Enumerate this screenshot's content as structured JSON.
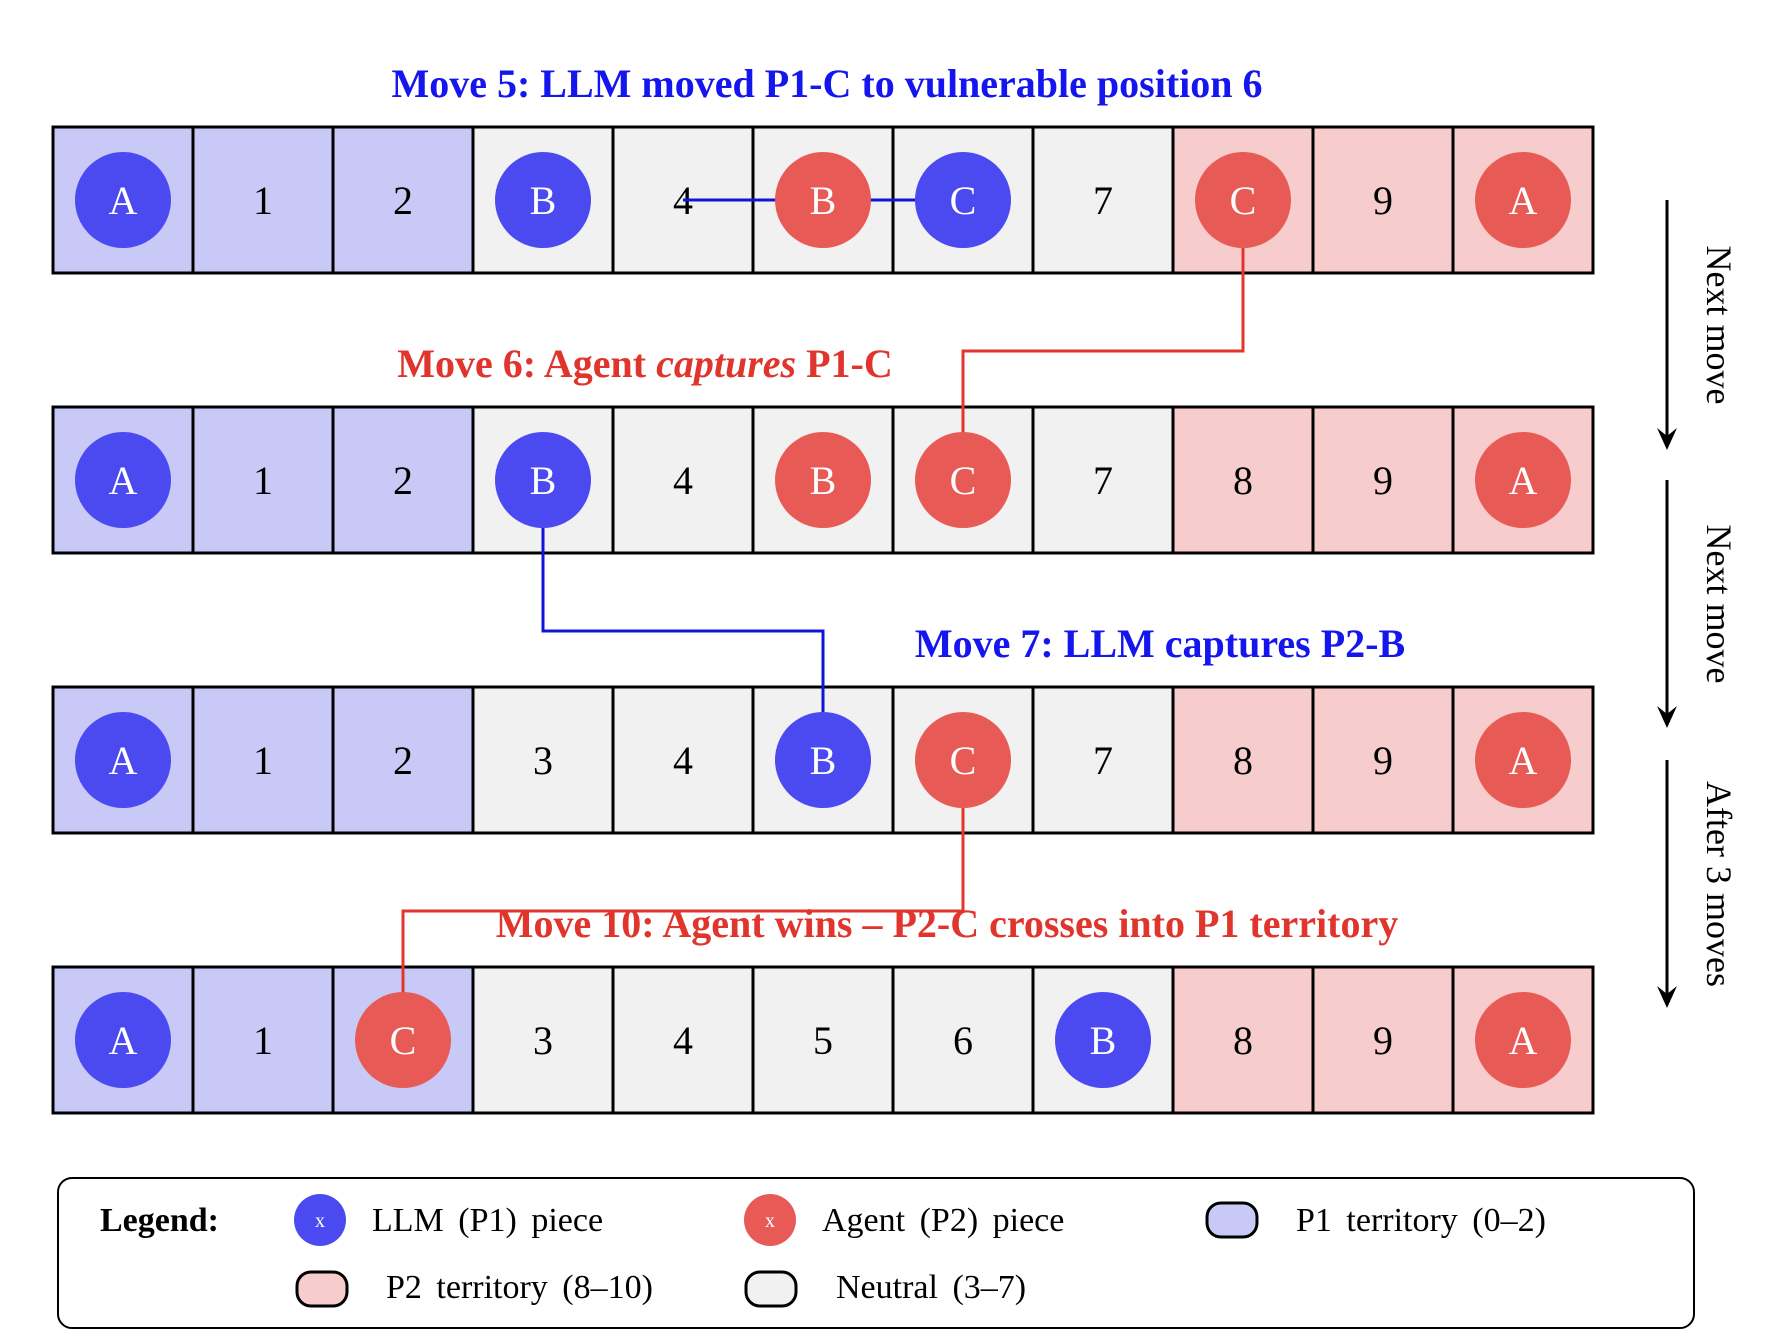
{
  "colors": {
    "p1_piece": "#4a4af0",
    "p2_piece": "#e85a55",
    "p1_territory": "#c9c9f7",
    "p2_territory": "#f6cccc",
    "neutral": "#f1f1f1",
    "p1_title": "#1515ee",
    "p2_title": "#e0352c",
    "p1_path": "#1414d6",
    "p2_path": "#e3352c"
  },
  "rows": [
    {
      "title_parts": [
        {
          "text": "Move 5: LLM moved P1-C to vulnerable position 6",
          "italic": false
        }
      ],
      "title_color": "p1",
      "cells": [
        {
          "text": "A",
          "piece": "p1"
        },
        {
          "text": "1",
          "piece": null
        },
        {
          "text": "2",
          "piece": null
        },
        {
          "text": "B",
          "piece": "p1"
        },
        {
          "text": "4",
          "piece": null
        },
        {
          "text": "B",
          "piece": "p2"
        },
        {
          "text": "C",
          "piece": "p1"
        },
        {
          "text": "7",
          "piece": null
        },
        {
          "text": "C",
          "piece": "p2"
        },
        {
          "text": "9",
          "piece": null
        },
        {
          "text": "A",
          "piece": "p2"
        }
      ]
    },
    {
      "title_parts": [
        {
          "text": "Move 6: Agent ",
          "italic": false
        },
        {
          "text": "captures",
          "italic": true
        },
        {
          "text": " P1-C",
          "italic": false
        }
      ],
      "title_color": "p2",
      "cells": [
        {
          "text": "A",
          "piece": "p1"
        },
        {
          "text": "1",
          "piece": null
        },
        {
          "text": "2",
          "piece": null
        },
        {
          "text": "B",
          "piece": "p1"
        },
        {
          "text": "4",
          "piece": null
        },
        {
          "text": "B",
          "piece": "p2"
        },
        {
          "text": "C",
          "piece": "p2"
        },
        {
          "text": "7",
          "piece": null
        },
        {
          "text": "8",
          "piece": null
        },
        {
          "text": "9",
          "piece": null
        },
        {
          "text": "A",
          "piece": "p2"
        }
      ]
    },
    {
      "title_parts": [
        {
          "text": "Move 7: LLM captures P2-B",
          "italic": false
        }
      ],
      "title_color": "p1",
      "cells": [
        {
          "text": "A",
          "piece": "p1"
        },
        {
          "text": "1",
          "piece": null
        },
        {
          "text": "2",
          "piece": null
        },
        {
          "text": "3",
          "piece": null
        },
        {
          "text": "4",
          "piece": null
        },
        {
          "text": "B",
          "piece": "p1"
        },
        {
          "text": "C",
          "piece": "p2"
        },
        {
          "text": "7",
          "piece": null
        },
        {
          "text": "8",
          "piece": null
        },
        {
          "text": "9",
          "piece": null
        },
        {
          "text": "A",
          "piece": "p2"
        }
      ]
    },
    {
      "title_parts": [
        {
          "text": "Move 10: Agent wins – P2-C crosses into P1 territory",
          "italic": false
        }
      ],
      "title_color": "p2",
      "cells": [
        {
          "text": "A",
          "piece": "p1"
        },
        {
          "text": "1",
          "piece": null
        },
        {
          "text": "C",
          "piece": "p2"
        },
        {
          "text": "3",
          "piece": null
        },
        {
          "text": "4",
          "piece": null
        },
        {
          "text": "5",
          "piece": null
        },
        {
          "text": "6",
          "piece": null
        },
        {
          "text": "B",
          "piece": "p1"
        },
        {
          "text": "8",
          "piece": null
        },
        {
          "text": "9",
          "piece": null
        },
        {
          "text": "A",
          "piece": "p2"
        }
      ]
    }
  ],
  "territory": [
    "p1",
    "p1",
    "p1",
    "neutral",
    "neutral",
    "neutral",
    "neutral",
    "neutral",
    "p2",
    "p2",
    "p2"
  ],
  "moves_between_rows": [
    {
      "player": "p1",
      "from_row": 0,
      "from_col": 4,
      "to_row": 0,
      "to_col": 6
    },
    {
      "player": "p2",
      "from_row": 0,
      "from_col": 8,
      "to_row": 1,
      "to_col": 6
    },
    {
      "player": "p1",
      "from_row": 1,
      "from_col": 3,
      "to_row": 2,
      "to_col": 5
    },
    {
      "player": "p2",
      "from_row": 2,
      "from_col": 6,
      "to_row": 3,
      "to_col": 2
    }
  ],
  "side_arrows": [
    "Next move",
    "Next move",
    "After 3 moves"
  ],
  "legend": {
    "title": "Legend:",
    "marker": "x",
    "p1_piece": "LLM (P1) piece",
    "p2_piece": "Agent (P2) piece",
    "p1_territory": "P1 territory (0–2)",
    "p2_territory": "P2 territory (8–10)",
    "neutral": "Neutral (3–7)"
  }
}
